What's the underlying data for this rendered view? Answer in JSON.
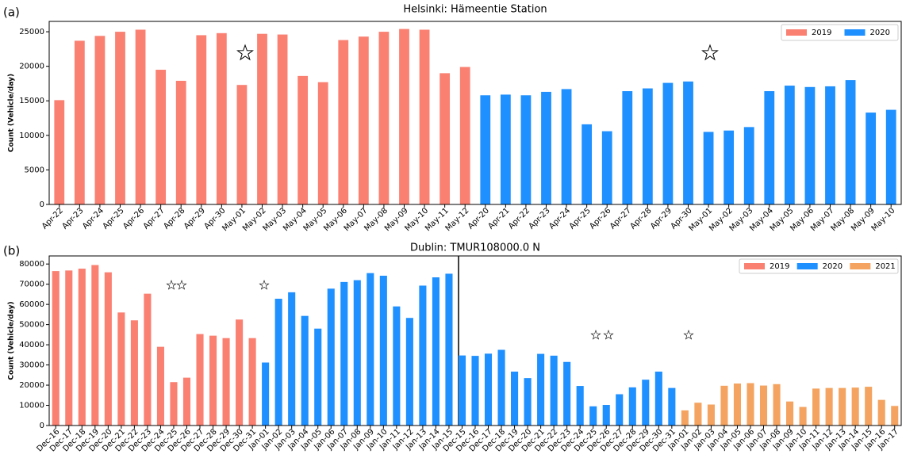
{
  "chart_data": [
    {
      "type": "bar",
      "panel_label": "(a)",
      "title": "Helsinki: Hämeentie Station",
      "y_label": "Count (Vehicle/day)",
      "categories": [
        "Apr-22",
        "Apr-23",
        "Apr-24",
        "Apr-25",
        "Apr-26",
        "Apr-27",
        "Apr-28",
        "Apr-29",
        "Apr-30",
        "May-01",
        "May-02",
        "May-03",
        "May-04",
        "May-05",
        "May-06",
        "May-07",
        "May-08",
        "May-09",
        "May-10",
        "May-11",
        "May-12",
        "Apr-20",
        "Apr-21",
        "Apr-22",
        "Apr-23",
        "Apr-24",
        "Apr-25",
        "Apr-26",
        "Apr-27",
        "Apr-28",
        "Apr-29",
        "Apr-30",
        "May-01",
        "May-02",
        "May-03",
        "May-04",
        "May-05",
        "May-06",
        "May-07",
        "May-08",
        "May-09",
        "May-10"
      ],
      "series": [
        {
          "name": "2019",
          "color": "#fa8072",
          "values": [
            15100,
            23700,
            24400,
            25000,
            25300,
            19500,
            17900,
            24500,
            24800,
            17300,
            24700,
            24600,
            18600,
            17700,
            23800,
            24300,
            25000,
            25400,
            25300,
            19000,
            19900,
            null,
            null,
            null,
            null,
            null,
            null,
            null,
            null,
            null,
            null,
            null,
            null,
            null,
            null,
            null,
            null,
            null,
            null,
            null,
            null,
            null
          ]
        },
        {
          "name": "2020",
          "color": "#1e90ff",
          "values": [
            null,
            null,
            null,
            null,
            null,
            null,
            null,
            null,
            null,
            null,
            null,
            null,
            null,
            null,
            null,
            null,
            null,
            null,
            null,
            null,
            null,
            15800,
            15900,
            15800,
            16300,
            16700,
            11600,
            10600,
            16400,
            16800,
            17600,
            17800,
            10500,
            10700,
            11200,
            16400,
            17200,
            17000,
            17100,
            18000,
            13300,
            13700
          ]
        }
      ],
      "ylim": [
        0,
        26500
      ],
      "yticks": [
        0,
        5000,
        10000,
        15000,
        20000,
        25000
      ],
      "grid": false,
      "legend": "upper right"
    },
    {
      "type": "bar",
      "panel_label": "(b)",
      "title": "Dublin: TMUR108000.0 N",
      "y_label": "Count (Vehicle/day)",
      "categories": [
        "Dec-16",
        "Dec-17",
        "Dec-18",
        "Dec-19",
        "Dec-20",
        "Dec-21",
        "Dec-22",
        "Dec-23",
        "Dec-24",
        "Dec-25",
        "Dec-26",
        "Dec-27",
        "Dec-28",
        "Dec-29",
        "Dec-30",
        "Dec-31",
        "Jan-01",
        "Jan-02",
        "Jan-03",
        "Jan-04",
        "Jan-05",
        "Jan-06",
        "Jan-07",
        "Jan-08",
        "Jan-09",
        "Jan-10",
        "Jan-11",
        "Jan-12",
        "Jan-13",
        "Jan-14",
        "Jan-15",
        "Dec-15",
        "Dec-16",
        "Dec-17",
        "Dec-18",
        "Dec-19",
        "Dec-20",
        "Dec-21",
        "Dec-22",
        "Dec-23",
        "Dec-24",
        "Dec-25",
        "Dec-26",
        "Dec-27",
        "Dec-28",
        "Dec-29",
        "Dec-30",
        "Dec-31",
        "Jan-01",
        "Jan-02",
        "Jan-03",
        "Jan-04",
        "Jan-05",
        "Jan-06",
        "Jan-07",
        "Jan-08",
        "Jan-09",
        "Jan-10",
        "Jan-11",
        "Jan-12",
        "Jan-13",
        "Jan-14",
        "Jan-15",
        "Jan-16",
        "Jan-17"
      ],
      "series": [
        {
          "name": "2019",
          "color": "#fa8072",
          "values": [
            76500,
            76800,
            77700,
            79500,
            75900,
            56000,
            52100,
            65300,
            39000,
            21500,
            23700,
            45300,
            44500,
            43300,
            52500,
            43300,
            null,
            null,
            null,
            null,
            null,
            null,
            null,
            null,
            null,
            null,
            null,
            null,
            null,
            null,
            null,
            null,
            null,
            null,
            null,
            null,
            null,
            null,
            null,
            null,
            null,
            null,
            null,
            null,
            null,
            null,
            null,
            null,
            null,
            null,
            null,
            null,
            null,
            null,
            null,
            null,
            null,
            null,
            null,
            null,
            null,
            null,
            null,
            null,
            null
          ]
        },
        {
          "name": "2020",
          "color": "#1e90ff",
          "values": [
            null,
            null,
            null,
            null,
            null,
            null,
            null,
            null,
            null,
            null,
            null,
            null,
            null,
            null,
            null,
            null,
            31200,
            62800,
            66000,
            54300,
            48000,
            67800,
            71100,
            72000,
            75500,
            74200,
            59000,
            53300,
            69300,
            73400,
            75200,
            34700,
            34500,
            35600,
            37500,
            26700,
            23500,
            35500,
            34600,
            31500,
            19600,
            9500,
            10200,
            15500,
            18900,
            22700,
            26700,
            18600,
            null,
            null,
            null,
            null,
            null,
            null,
            null,
            null,
            null,
            null,
            null,
            null,
            null,
            null,
            null,
            null,
            null
          ]
        },
        {
          "name": "2021",
          "color": "#f4a460",
          "values": [
            null,
            null,
            null,
            null,
            null,
            null,
            null,
            null,
            null,
            null,
            null,
            null,
            null,
            null,
            null,
            null,
            null,
            null,
            null,
            null,
            null,
            null,
            null,
            null,
            null,
            null,
            null,
            null,
            null,
            null,
            null,
            null,
            null,
            null,
            null,
            null,
            null,
            null,
            null,
            null,
            null,
            null,
            null,
            null,
            null,
            null,
            null,
            null,
            7500,
            11300,
            10400,
            19700,
            20800,
            21000,
            19800,
            20500,
            11900,
            9200,
            18300,
            18600,
            18600,
            18800,
            19200,
            12700,
            9700
          ]
        }
      ],
      "ylim": [
        0,
        84000
      ],
      "yticks": [
        0,
        10000,
        20000,
        30000,
        40000,
        50000,
        60000,
        70000,
        80000
      ],
      "grid": false,
      "legend": "upper right"
    }
  ]
}
